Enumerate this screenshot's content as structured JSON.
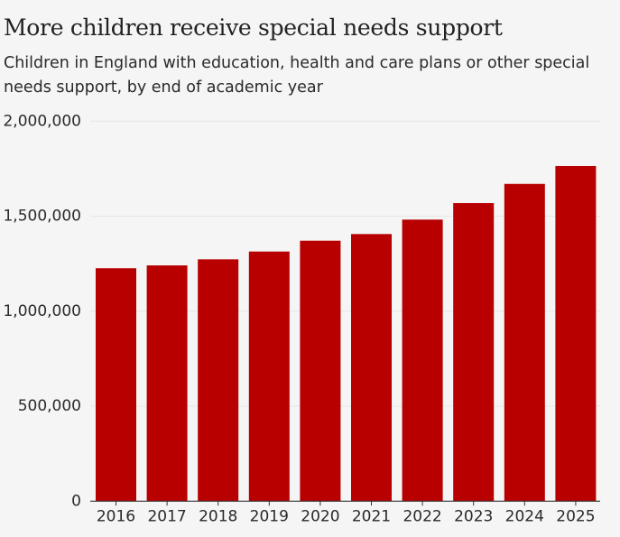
{
  "header": {
    "title": "More children receive special needs support",
    "subtitle": "Children in England with education, health and care plans or other special needs support, by end of academic year"
  },
  "colors": {
    "bar": "#b80000",
    "background": "#f5f5f5",
    "gridline": "#e6e6e6",
    "axis": "#333333",
    "text": "#222222"
  },
  "chart_data": {
    "type": "bar",
    "title": "More children receive special needs support",
    "subtitle": "Children in England with education, health and care plans or other special needs support, by end of academic year",
    "xlabel": "",
    "ylabel": "",
    "categories": [
      "2016",
      "2017",
      "2018",
      "2019",
      "2020",
      "2021",
      "2022",
      "2023",
      "2024",
      "2025"
    ],
    "values": [
      1226000,
      1241000,
      1273000,
      1314000,
      1371000,
      1406000,
      1482000,
      1569000,
      1670000,
      1764000
    ],
    "ylim": [
      0,
      2000000
    ],
    "yticks": [
      0,
      500000,
      1000000,
      1500000,
      2000000
    ],
    "ytick_labels": [
      "0",
      "500,000",
      "1,000,000",
      "1,500,000",
      "2,000,000"
    ],
    "grid": true,
    "legend": "none"
  }
}
